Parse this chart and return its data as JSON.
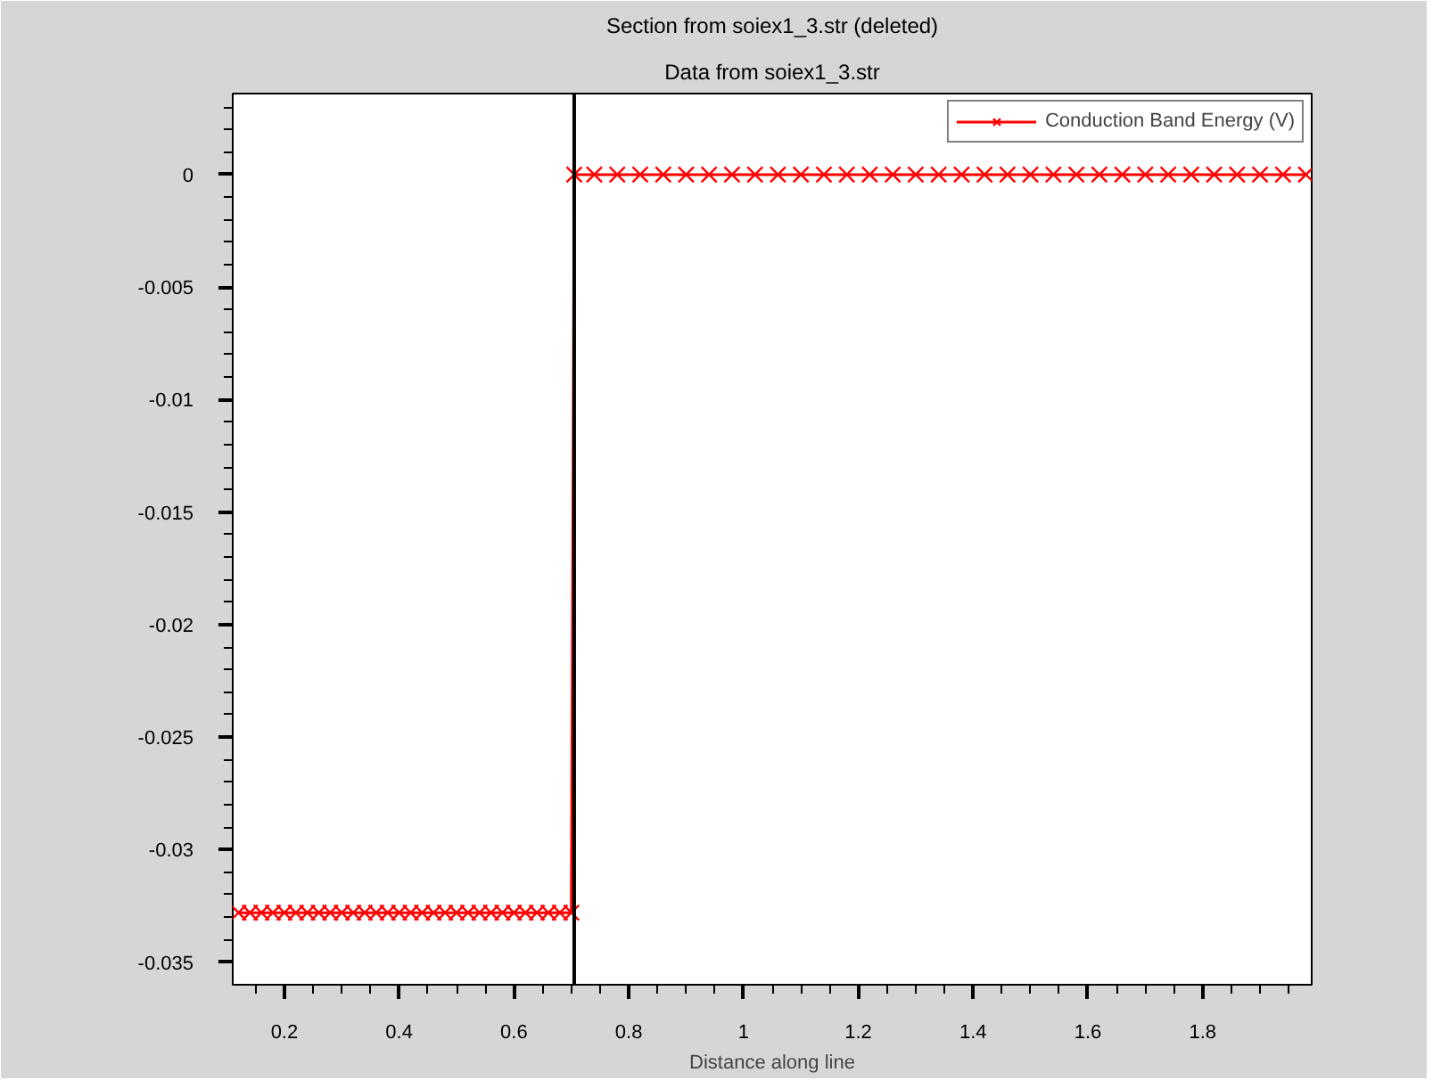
{
  "chart_data": {
    "type": "line",
    "title": "Section from soiex1_3.str (deleted)",
    "subtitle": "Data from soiex1_3.str",
    "xlabel": "Distance along line",
    "series": [
      {
        "name": "Conduction Band Energy (V)",
        "color": "#ff0000",
        "x": [
          0.12,
          0.14,
          0.16,
          0.18,
          0.2,
          0.22,
          0.24,
          0.26,
          0.28,
          0.3,
          0.32,
          0.34,
          0.36,
          0.38,
          0.4,
          0.42,
          0.44,
          0.46,
          0.48,
          0.5,
          0.52,
          0.54,
          0.56,
          0.58,
          0.6,
          0.62,
          0.64,
          0.66,
          0.68,
          0.7,
          0.705,
          0.74,
          0.78,
          0.82,
          0.86,
          0.9,
          0.94,
          0.98,
          1.02,
          1.06,
          1.1,
          1.14,
          1.18,
          1.22,
          1.26,
          1.3,
          1.34,
          1.38,
          1.42,
          1.46,
          1.5,
          1.54,
          1.58,
          1.62,
          1.66,
          1.7,
          1.74,
          1.78,
          1.82,
          1.86,
          1.9,
          1.94,
          1.98
        ],
        "values": [
          -0.0328,
          -0.0328,
          -0.0328,
          -0.0328,
          -0.0328,
          -0.0328,
          -0.0328,
          -0.0328,
          -0.0328,
          -0.0328,
          -0.0328,
          -0.0328,
          -0.0328,
          -0.0328,
          -0.0328,
          -0.0328,
          -0.0328,
          -0.0328,
          -0.0328,
          -0.0328,
          -0.0328,
          -0.0328,
          -0.0328,
          -0.0328,
          -0.0328,
          -0.0328,
          -0.0328,
          -0.0328,
          -0.0328,
          -0.0328,
          0,
          0,
          0,
          0,
          0,
          0,
          0,
          0,
          0,
          0,
          0,
          0,
          0,
          0,
          0,
          0,
          0,
          0,
          0,
          0,
          0,
          0,
          0,
          0,
          0,
          0,
          0,
          0,
          0,
          0,
          0,
          0,
          0
        ]
      }
    ],
    "xlim": [
      0.11,
      1.99
    ],
    "ylim": [
      -0.036,
      0.0036
    ],
    "xticks": [
      {
        "value": 0.15,
        "label": null
      },
      0.2,
      {
        "value": 0.25,
        "label": null
      },
      {
        "value": 0.3,
        "label": null
      },
      {
        "value": 0.35,
        "label": null
      },
      0.4,
      {
        "value": 0.45,
        "label": null
      },
      {
        "value": 0.5,
        "label": null
      },
      {
        "value": 0.55,
        "label": null
      },
      0.6,
      {
        "value": 0.65,
        "label": null
      },
      {
        "value": 0.7,
        "label": null
      },
      {
        "value": 0.75,
        "label": null
      },
      0.8,
      {
        "value": 0.85,
        "label": null
      },
      {
        "value": 0.9,
        "label": null
      },
      {
        "value": 0.95,
        "label": null
      },
      1,
      {
        "value": 1.05,
        "label": null
      },
      {
        "value": 1.1,
        "label": null
      },
      {
        "value": 1.15,
        "label": null
      },
      1.2,
      {
        "value": 1.25,
        "label": null
      },
      {
        "value": 1.3,
        "label": null
      },
      {
        "value": 1.35,
        "label": null
      },
      1.4,
      {
        "value": 1.45,
        "label": null
      },
      {
        "value": 1.5,
        "label": null
      },
      {
        "value": 1.55,
        "label": null
      },
      1.6,
      {
        "value": 1.65,
        "label": null
      },
      {
        "value": 1.7,
        "label": null
      },
      {
        "value": 1.75,
        "label": null
      },
      1.8,
      {
        "value": 1.85,
        "label": null
      },
      {
        "value": 1.9,
        "label": null
      },
      {
        "value": 1.95,
        "label": null
      }
    ],
    "yticks": [
      {
        "value": 0.003,
        "label": null
      },
      {
        "value": 0.002,
        "label": null
      },
      {
        "value": 0.001,
        "label": null
      },
      0,
      {
        "value": -0.001,
        "label": null
      },
      {
        "value": -0.002,
        "label": null
      },
      {
        "value": -0.003,
        "label": null
      },
      {
        "value": -0.004,
        "label": null
      },
      -0.005,
      {
        "value": -0.006,
        "label": null
      },
      {
        "value": -0.007,
        "label": null
      },
      {
        "value": -0.008,
        "label": null
      },
      {
        "value": -0.009,
        "label": null
      },
      -0.01,
      {
        "value": -0.011,
        "label": null
      },
      {
        "value": -0.012,
        "label": null
      },
      {
        "value": -0.013,
        "label": null
      },
      {
        "value": -0.014,
        "label": null
      },
      -0.015,
      {
        "value": -0.016,
        "label": null
      },
      {
        "value": -0.017,
        "label": null
      },
      {
        "value": -0.018,
        "label": null
      },
      {
        "value": -0.019,
        "label": null
      },
      -0.02,
      {
        "value": -0.021,
        "label": null
      },
      {
        "value": -0.022,
        "label": null
      },
      {
        "value": -0.023,
        "label": null
      },
      {
        "value": -0.024,
        "label": null
      },
      -0.025,
      {
        "value": -0.026,
        "label": null
      },
      {
        "value": -0.027,
        "label": null
      },
      {
        "value": -0.028,
        "label": null
      },
      {
        "value": -0.029,
        "label": null
      },
      -0.03,
      {
        "value": -0.031,
        "label": null
      },
      {
        "value": -0.032,
        "label": null
      },
      {
        "value": -0.033,
        "label": null
      },
      {
        "value": -0.034,
        "label": null
      },
      -0.035
    ],
    "ref_lines": [
      {
        "axis": "x",
        "value": 0.705,
        "color": "#000000"
      }
    ],
    "grid": false,
    "legend": "top right",
    "marker": "cross",
    "line_style": "solid"
  }
}
